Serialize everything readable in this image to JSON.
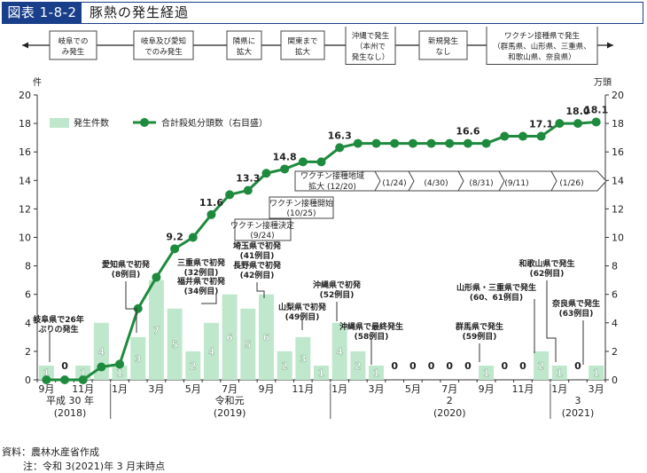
{
  "header": {
    "figure_number": "図表 1-8-2",
    "title": "豚熱の発生経過"
  },
  "footnotes": {
    "source": "資料：農林水産省作成",
    "note": "注：令和 3(2021)年 3 月末時点"
  },
  "colors": {
    "bar": "#bfe7cc",
    "line": "#1e8a3e",
    "axis": "#333333",
    "box_border": "#444444"
  },
  "chart_data": {
    "type": "bar+line",
    "categories": [
      "2018-09",
      "2018-10",
      "2018-11",
      "2018-12",
      "2019-01",
      "2019-02",
      "2019-03",
      "2019-04",
      "2019-05",
      "2019-06",
      "2019-07",
      "2019-08",
      "2019-09",
      "2019-10",
      "2019-11",
      "2019-12",
      "2020-01",
      "2020-02",
      "2020-03",
      "2020-04",
      "2020-05",
      "2020-06",
      "2020-07",
      "2020-08",
      "2020-09",
      "2020-10",
      "2020-11",
      "2020-12",
      "2021-01",
      "2021-02",
      "2021-03"
    ],
    "series": [
      {
        "name": "発生件数",
        "type": "bar",
        "axis": "left",
        "values": [
          1,
          0,
          1,
          4,
          1,
          3,
          7,
          5,
          2,
          4,
          6,
          5,
          6,
          2,
          3,
          1,
          4,
          2,
          1,
          0,
          0,
          0,
          0,
          0,
          1,
          0,
          0,
          2,
          1,
          0,
          1
        ]
      },
      {
        "name": "合計殺処分頭数（右目盛）",
        "type": "line",
        "axis": "right",
        "values": [
          0,
          0,
          0,
          0.9,
          1.1,
          5.0,
          7.2,
          9.2,
          10.0,
          11.6,
          13.0,
          13.3,
          14.5,
          14.8,
          15.3,
          15.3,
          16.3,
          16.6,
          16.6,
          16.6,
          16.6,
          16.6,
          16.6,
          16.6,
          16.6,
          17.1,
          17.1,
          17.1,
          18.0,
          18.0,
          18.1
        ]
      }
    ],
    "line_value_labels": [
      {
        "index": 7,
        "text": "9.2"
      },
      {
        "index": 9,
        "text": "11.6"
      },
      {
        "index": 11,
        "text": "13.3"
      },
      {
        "index": 13,
        "text": "14.8"
      },
      {
        "index": 16,
        "text": "16.3"
      },
      {
        "index": 23,
        "text": "16.6"
      },
      {
        "index": 27,
        "text": "17.1"
      },
      {
        "index": 29,
        "text": "18.0"
      },
      {
        "index": 30,
        "text": "18.1"
      }
    ],
    "y_left": {
      "unit": "件",
      "min": 0,
      "max": 20,
      "ticks": [
        0,
        2,
        4,
        6,
        8,
        10,
        12,
        14,
        16,
        18,
        20
      ]
    },
    "y_right": {
      "unit": "万頭",
      "min": 0,
      "max": 20,
      "ticks": [
        0,
        2,
        4,
        6,
        8,
        10,
        12,
        14,
        16,
        18,
        20
      ]
    },
    "x_tick_labels": [
      {
        "index": 0,
        "text": "9月"
      },
      {
        "index": 2,
        "text": "11月"
      },
      {
        "index": 4,
        "text": "1月"
      },
      {
        "index": 6,
        "text": "3月"
      },
      {
        "index": 8,
        "text": "5月"
      },
      {
        "index": 10,
        "text": "7月"
      },
      {
        "index": 12,
        "text": "9月"
      },
      {
        "index": 14,
        "text": "11月"
      },
      {
        "index": 16,
        "text": "1月"
      },
      {
        "index": 18,
        "text": "3月"
      },
      {
        "index": 20,
        "text": "5月"
      },
      {
        "index": 22,
        "text": "7月"
      },
      {
        "index": 24,
        "text": "9月"
      },
      {
        "index": 26,
        "text": "11月"
      },
      {
        "index": 28,
        "text": "1月"
      },
      {
        "index": 30,
        "text": "3月"
      }
    ],
    "year_labels": [
      {
        "index": 1,
        "line1": "平成 30 年",
        "line2": "(2018)"
      },
      {
        "index": 10,
        "line1": "令和元",
        "line2": "(2019)"
      },
      {
        "index": 22,
        "line1": "2",
        "line2": "(2020)"
      },
      {
        "index": 29,
        "line1": "3",
        "line2": "(2021)"
      }
    ],
    "legend": {
      "position": "top-left",
      "bar_label": "発生件数",
      "line_label": "合計殺処分頭数（右目盛）"
    },
    "stages": [
      "岐阜でのみ発生",
      "岐阜及び愛知でのみ発生",
      "隣県に拡大",
      "関東まで拡大",
      "沖縄で発生（本州で発生なし）",
      "新規発生なし",
      "ワクチン接種県で発生（群馬県、山形県、三重県、和歌山県、奈良県）"
    ],
    "stage_lines": [
      [
        "岐阜での",
        "み発生"
      ],
      [
        "岐阜及び愛知",
        "でのみ発生"
      ],
      [
        "隣県に",
        "拡大"
      ],
      [
        "関東まで",
        "拡大"
      ],
      [
        "沖縄で発生",
        "（本州で",
        "発生なし）"
      ],
      [
        "新規発生",
        "なし"
      ],
      [
        "ワクチン接種県で発生",
        "（群馬県、山形県、三重県、",
        "和歌山県、奈良県）"
      ]
    ],
    "vaccine_events": [
      {
        "lines": [
          "ワクチン接種決定",
          "(9/24)"
        ]
      },
      {
        "lines": [
          "ワクチン接種開始",
          "(10/25)"
        ]
      }
    ],
    "vaccine_area": {
      "first_lines": [
        "ワクチン接種地域",
        "拡大 (12/20)"
      ],
      "dates": [
        "(1/24)",
        "(4/30)",
        "(8/31)",
        "(9/11)",
        "(1/26)"
      ]
    },
    "annotations": [
      {
        "lines": [
          "岐阜県で26年",
          "ぶりの発生"
        ]
      },
      {
        "lines": [
          "愛知県で初発",
          "(8例目)"
        ]
      },
      {
        "lines": [
          "三重県で初発",
          "(32例目)"
        ]
      },
      {
        "lines": [
          "福井県で初発",
          "(34例目)"
        ]
      },
      {
        "lines": [
          "埼玉県で初発",
          "(41例目)",
          "長野県で初発",
          "(42例目)"
        ]
      },
      {
        "lines": [
          "山梨県で初発",
          "(49例目)"
        ]
      },
      {
        "lines": [
          "沖縄県で初発",
          "(52例目)"
        ]
      },
      {
        "lines": [
          "沖縄県で最終発生",
          "(58例目)"
        ]
      },
      {
        "lines": [
          "群馬県で発生",
          "(59例目)"
        ]
      },
      {
        "lines": [
          "山形県・三重県で発生",
          "(60、61例目)"
        ]
      },
      {
        "lines": [
          "和歌山県で発生",
          "(62例目)"
        ]
      },
      {
        "lines": [
          "奈良県で発生",
          "(63例目)"
        ]
      }
    ]
  }
}
